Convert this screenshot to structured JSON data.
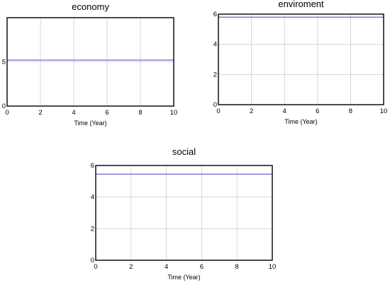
{
  "chart_data": [
    {
      "type": "line",
      "title": "economy",
      "xlabel": "Time (Year)",
      "ylabel": "",
      "xlim": [
        0,
        10
      ],
      "ylim": [
        0,
        10
      ],
      "xticks": [
        "0",
        "2",
        "4",
        "6",
        "8",
        "10"
      ],
      "yticks": [
        "0",
        "5"
      ],
      "ytick_values": [
        0,
        5
      ],
      "grid": true,
      "series": [
        {
          "x": [
            0,
            10
          ],
          "values": [
            5.2,
            5.2
          ],
          "color": "#6666cc"
        }
      ]
    },
    {
      "type": "line",
      "title": "enviroment",
      "xlabel": "Time (Year)",
      "ylabel": "",
      "xlim": [
        0,
        10
      ],
      "ylim": [
        0,
        6
      ],
      "xticks": [
        "0",
        "2",
        "4",
        "6",
        "8",
        "10"
      ],
      "yticks": [
        "0",
        "2",
        "4",
        "6"
      ],
      "ytick_values": [
        0,
        2,
        4,
        6
      ],
      "grid": true,
      "series": [
        {
          "x": [
            0,
            10
          ],
          "values": [
            5.8,
            5.8
          ],
          "color": "#6666cc"
        }
      ]
    },
    {
      "type": "line",
      "title": "social",
      "xlabel": "Time (Year)",
      "ylabel": "",
      "xlim": [
        0,
        10
      ],
      "ylim": [
        0,
        6
      ],
      "xticks": [
        "0",
        "2",
        "4",
        "6",
        "8",
        "10"
      ],
      "yticks": [
        "0",
        "2",
        "4",
        "6"
      ],
      "ytick_values": [
        0,
        2,
        4,
        6
      ],
      "grid": true,
      "series": [
        {
          "x": [
            0,
            10
          ],
          "values": [
            5.45,
            5.45
          ],
          "color": "#6666cc"
        }
      ]
    }
  ]
}
